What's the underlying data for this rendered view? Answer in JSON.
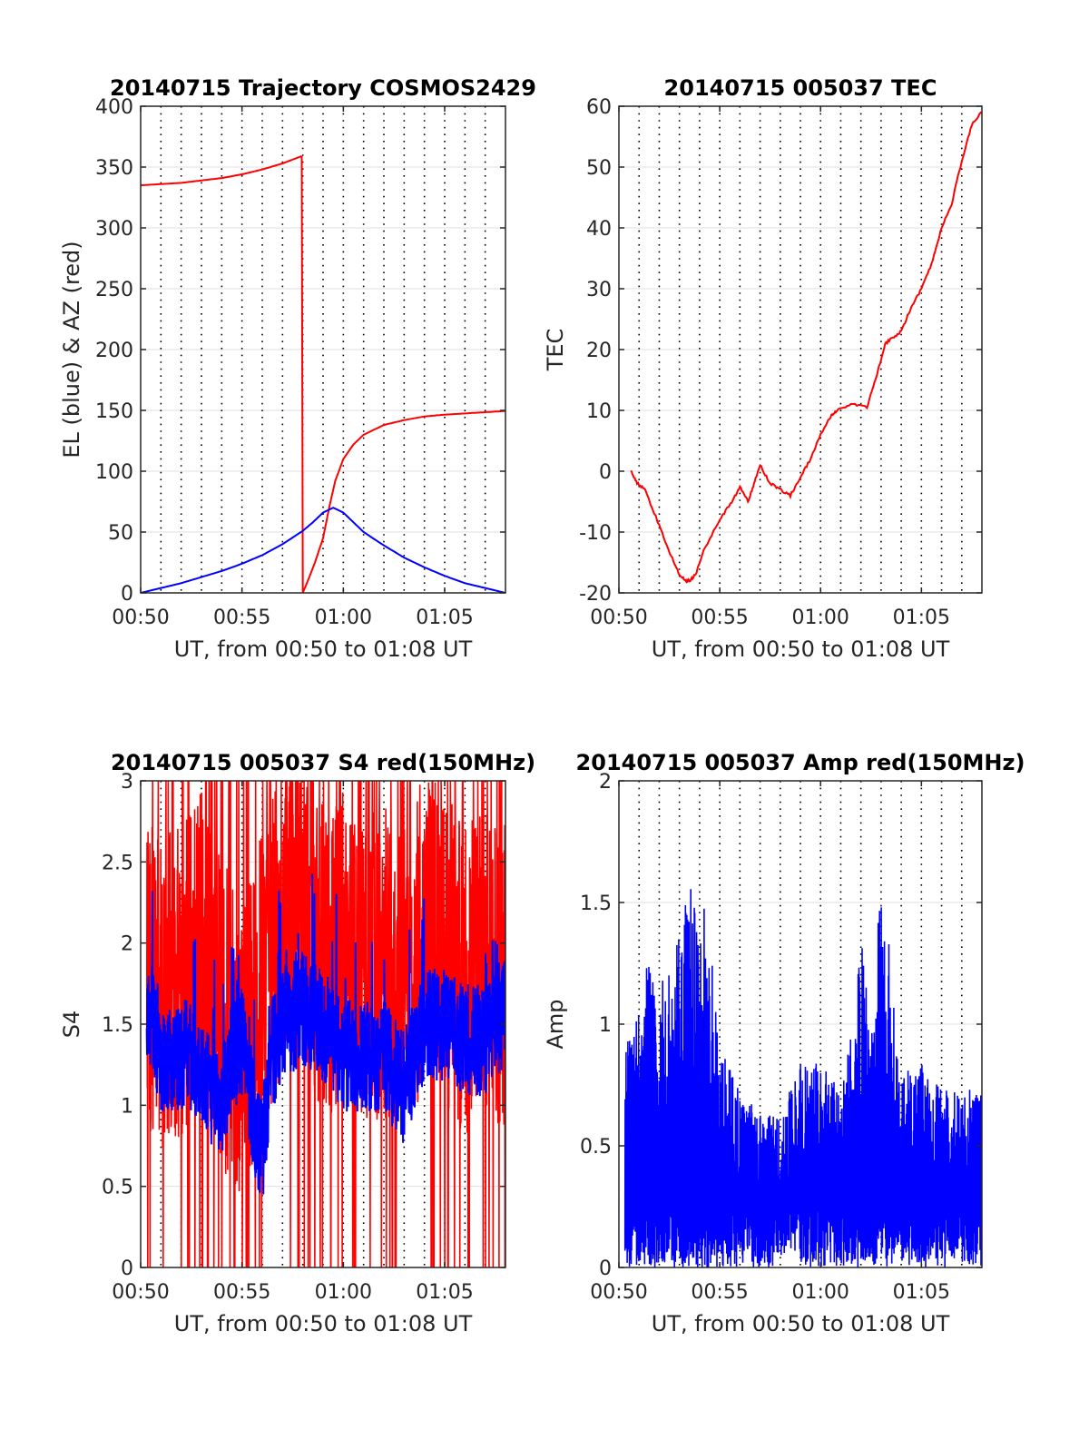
{
  "x_axis": {
    "label": "UT, from 00:50 to 01:08 UT",
    "tick_labels": [
      "00:50",
      "00:55",
      "01:00",
      "01:05"
    ],
    "tick_values": [
      0,
      5,
      10,
      15
    ],
    "range": [
      0,
      18
    ],
    "dotted_grid_every": 1
  },
  "colors": {
    "red": "#ff0000",
    "blue": "#0000ff",
    "axis": "#262626",
    "grid": "#dfdfdf"
  },
  "chart_data": [
    {
      "type": "line",
      "title": "20140715 Trajectory COSMOS2429",
      "xlabel": "UT, from 00:50 to 01:08 UT",
      "ylabel": "EL (blue) & AZ (red)",
      "ylim": [
        0,
        400
      ],
      "yticks": [
        0,
        50,
        100,
        150,
        200,
        250,
        300,
        350,
        400
      ],
      "series": [
        {
          "color": "red",
          "x": [
            0,
            1,
            2,
            3,
            4,
            5,
            6,
            7,
            7.95,
            8.0,
            8.3,
            8.6,
            9.0,
            9.3,
            9.6,
            10.0,
            10.5,
            11,
            12,
            13,
            14,
            15,
            16,
            17,
            18
          ],
          "y": [
            335,
            336,
            337,
            339,
            341,
            344,
            348,
            353,
            359,
            0,
            12,
            25,
            45,
            70,
            92,
            110,
            122,
            130,
            138,
            142,
            145,
            146.5,
            147.5,
            148.5,
            149.5
          ]
        },
        {
          "color": "blue",
          "x": [
            0,
            1,
            2,
            3,
            4,
            5,
            6,
            7,
            8,
            8.5,
            9,
            9.5,
            10,
            10.5,
            11,
            12,
            13,
            14,
            15,
            16,
            17,
            18
          ],
          "y": [
            0,
            4,
            8,
            13,
            18,
            24,
            31,
            40,
            51,
            58,
            66,
            70,
            66,
            58,
            50,
            39,
            29,
            21,
            14,
            8,
            4,
            0
          ]
        }
      ]
    },
    {
      "type": "line",
      "title": "20140715 005037 TEC",
      "xlabel": "UT, from 00:50 to 01:08 UT",
      "ylabel": "TEC",
      "ylim": [
        -20,
        60
      ],
      "yticks": [
        -20,
        -10,
        0,
        10,
        20,
        30,
        40,
        50,
        60
      ],
      "series": [
        {
          "color": "red",
          "x": [
            0.6,
            0.9,
            1.3,
            2.0,
            2.6,
            3.0,
            3.3,
            3.5,
            3.8,
            4.2,
            5.0,
            5.6,
            6.0,
            6.4,
            6.7,
            7.0,
            7.5,
            8.0,
            8.5,
            9.0,
            9.5,
            10.0,
            10.5,
            10.8,
            11.5,
            12.3,
            12.8,
            13.2,
            13.6,
            14.0,
            14.5,
            15.0,
            15.5,
            16.0,
            16.5,
            17.0,
            17.5,
            18.0
          ],
          "y": [
            0,
            -2,
            -3,
            -9,
            -14,
            -17,
            -18,
            -18,
            -17,
            -13,
            -8,
            -5,
            -2.5,
            -5,
            -2,
            1,
            -2,
            -3,
            -4,
            -1,
            2,
            6,
            9,
            10,
            11,
            10.5,
            16,
            21,
            22,
            23,
            27,
            30,
            34,
            40,
            44,
            51,
            57,
            59
          ]
        }
      ]
    },
    {
      "type": "line",
      "title": "20140715 005037 S4 red(150MHz)",
      "xlabel": "UT, from 00:50 to 01:08 UT",
      "ylabel": "S4",
      "ylim": [
        0,
        3
      ],
      "yticks": [
        0,
        0.5,
        1,
        1.5,
        2,
        2.5,
        3
      ],
      "series": [
        {
          "color": "red",
          "x_range": [
            0.3,
            18
          ],
          "profile": "noisy",
          "x": [
            0.5,
            1,
            2,
            3,
            4,
            5,
            6,
            7,
            8,
            9,
            10,
            11,
            12,
            13,
            14,
            15,
            16,
            17,
            18
          ],
          "y": [
            1.8,
            1.7,
            1.8,
            2.0,
            1.6,
            1.4,
            1.8,
            2.2,
            2.3,
            1.9,
            2.0,
            1.9,
            1.9,
            1.8,
            2.1,
            2.0,
            1.8,
            1.9,
            1.8
          ]
        },
        {
          "color": "blue",
          "x_range": [
            0.3,
            18
          ],
          "profile": "noisy",
          "x": [
            0.5,
            1,
            1.5,
            2,
            2.5,
            3,
            3.5,
            4,
            4.5,
            5,
            5.5,
            6,
            6.5,
            7,
            8,
            9,
            10,
            11,
            12,
            13,
            14,
            15,
            16,
            17,
            18
          ],
          "y": [
            1.6,
            1.3,
            1.3,
            1.3,
            1.3,
            1.25,
            1.1,
            1.0,
            1.3,
            1.4,
            1.0,
            0.7,
            1.3,
            1.5,
            1.6,
            1.5,
            1.3,
            1.3,
            1.3,
            1.1,
            1.5,
            1.5,
            1.4,
            1.4,
            1.6
          ]
        }
      ]
    },
    {
      "type": "line",
      "title": "20140715 005037 Amp red(150MHz)",
      "xlabel": "UT, from 00:50 to 01:08 UT",
      "ylabel": "Amp",
      "ylim": [
        0,
        2
      ],
      "yticks": [
        0,
        0.5,
        1,
        1.5,
        2
      ],
      "series": [
        {
          "color": "blue",
          "x_range": [
            0.3,
            18
          ],
          "profile": "spiky",
          "x": [
            0.5,
            1,
            1.5,
            2,
            2.5,
            3,
            3.5,
            4,
            4.5,
            5,
            5.5,
            6,
            7,
            8,
            9,
            10,
            11,
            11.5,
            12,
            12.5,
            13,
            13.5,
            14,
            15,
            16,
            17,
            18
          ],
          "y": [
            0.9,
            1.1,
            1.2,
            1.1,
            1.2,
            1.3,
            1.5,
            1.5,
            1.3,
            0.9,
            0.8,
            0.7,
            0.6,
            0.6,
            0.8,
            0.8,
            0.7,
            0.9,
            1.3,
            1.0,
            1.5,
            1.2,
            0.8,
            0.8,
            0.7,
            0.7,
            0.7
          ]
        }
      ]
    }
  ]
}
